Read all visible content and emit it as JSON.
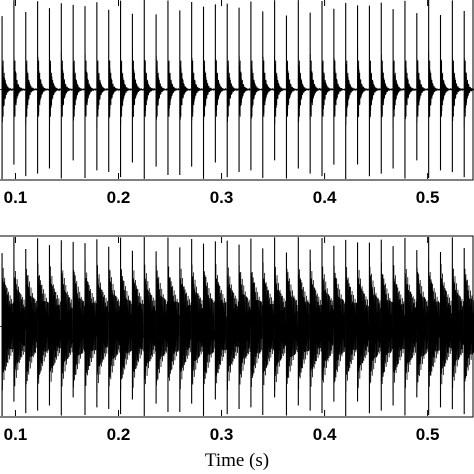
{
  "chart_data": [
    {
      "type": "line",
      "title": "",
      "xlabel": "",
      "ylabel": "",
      "xlim": [
        0.085,
        0.545
      ],
      "x_ticks": [
        "0.1",
        "0.2",
        "0.3",
        "0.4",
        "0.5"
      ],
      "x_tick_values": [
        0.1,
        0.2,
        0.3,
        0.4,
        0.5
      ],
      "grid": false,
      "series": [
        {
          "description_visible": "periodic impulse train with decaying ringing",
          "impulse_period_s": 0.0115,
          "first_impulse_s": 0.087,
          "spike_amplitude": 1.0,
          "ringing_amplitude": 0.3,
          "decay": "fast"
        }
      ]
    },
    {
      "type": "line",
      "title": "",
      "xlabel": "Time (s)",
      "ylabel": "",
      "xlim": [
        0.085,
        0.545
      ],
      "x_ticks": [
        "0.1",
        "0.2",
        "0.3",
        "0.4",
        "0.5"
      ],
      "x_tick_values": [
        0.1,
        0.2,
        0.3,
        0.4,
        0.5
      ],
      "grid": false,
      "series": [
        {
          "description_visible": "periodic impulse train with sustained ringing",
          "impulse_period_s": 0.0115,
          "first_impulse_s": 0.087,
          "spike_amplitude": 1.0,
          "ringing_amplitude": 0.45,
          "decay": "slow"
        }
      ]
    }
  ]
}
